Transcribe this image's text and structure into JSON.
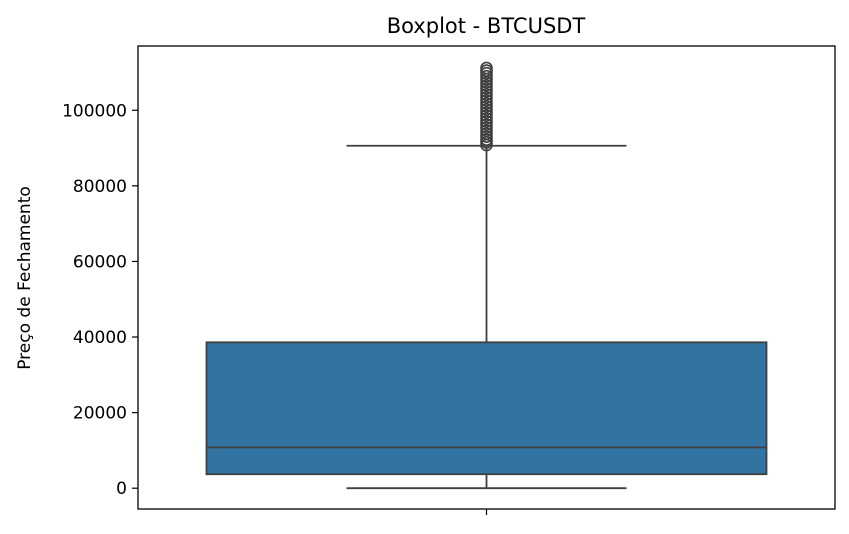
{
  "chart_data": {
    "type": "boxplot",
    "title": "Boxplot - BTCUSDT",
    "xlabel": "",
    "ylabel": "Preço de Fechamento",
    "ylim": [
      -5500,
      117000
    ],
    "yticks": [
      0,
      20000,
      40000,
      60000,
      80000,
      100000
    ],
    "ytick_labels": [
      "0",
      "20000",
      "40000",
      "60000",
      "80000",
      "100000"
    ],
    "box": {
      "whisker_low": 0,
      "q1": 3700,
      "median": 10800,
      "q3": 38600,
      "whisker_high": 90600
    },
    "outliers": [
      90800,
      91500,
      92200,
      93000,
      93800,
      94600,
      95400,
      96200,
      97000,
      97800,
      98600,
      99400,
      100200,
      101000,
      101800,
      102600,
      103400,
      104200,
      105000,
      105800,
      106600,
      107400,
      108200,
      109000,
      109800,
      110500,
      111200
    ],
    "grid": false,
    "colors": {
      "box_fill": "#3274a1",
      "line": "#3f3f3f",
      "axes": "#000000"
    }
  }
}
